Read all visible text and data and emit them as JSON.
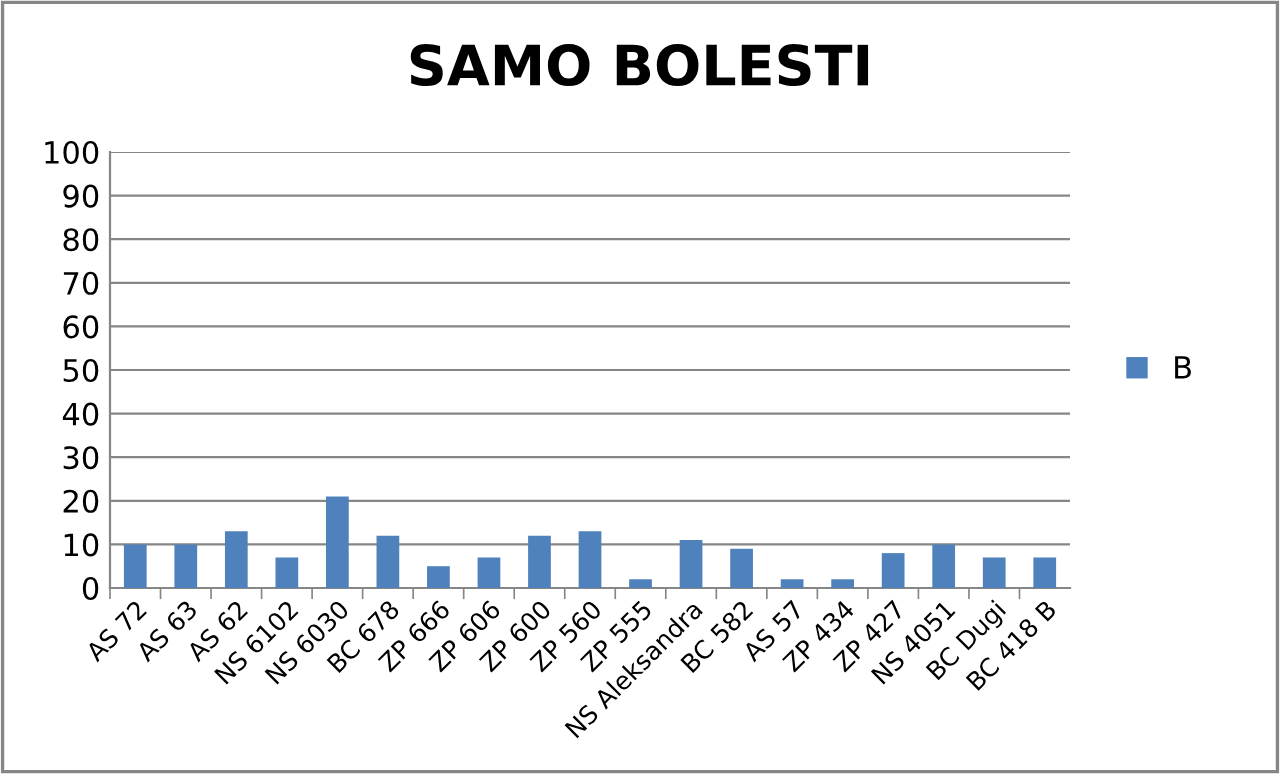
{
  "chart_data": {
    "type": "bar",
    "title": "SAMO BOLESTI",
    "categories": [
      "AS 72",
      "AS 63",
      "AS 62",
      "NS 6102",
      "NS 6030",
      "BC 678",
      "ZP 666",
      "ZP 606",
      "ZP 600",
      "ZP 560",
      "ZP 555",
      "NS Aleksandra",
      "BC 582",
      "AS 57",
      "ZP 434",
      "ZP 427",
      "NS 4051",
      "BC Dugi",
      "BC 418 B"
    ],
    "series": [
      {
        "name": "B",
        "color": "#4f81bd",
        "values": [
          10,
          10,
          13,
          7,
          21,
          12,
          5,
          7,
          12,
          13,
          2,
          11,
          9,
          2,
          2,
          8,
          10,
          7,
          7
        ]
      }
    ],
    "ylim": [
      0,
      100
    ],
    "yticks": [
      0,
      10,
      20,
      30,
      40,
      50,
      60,
      70,
      80,
      90,
      100
    ],
    "grid": "y",
    "legend": "right"
  }
}
